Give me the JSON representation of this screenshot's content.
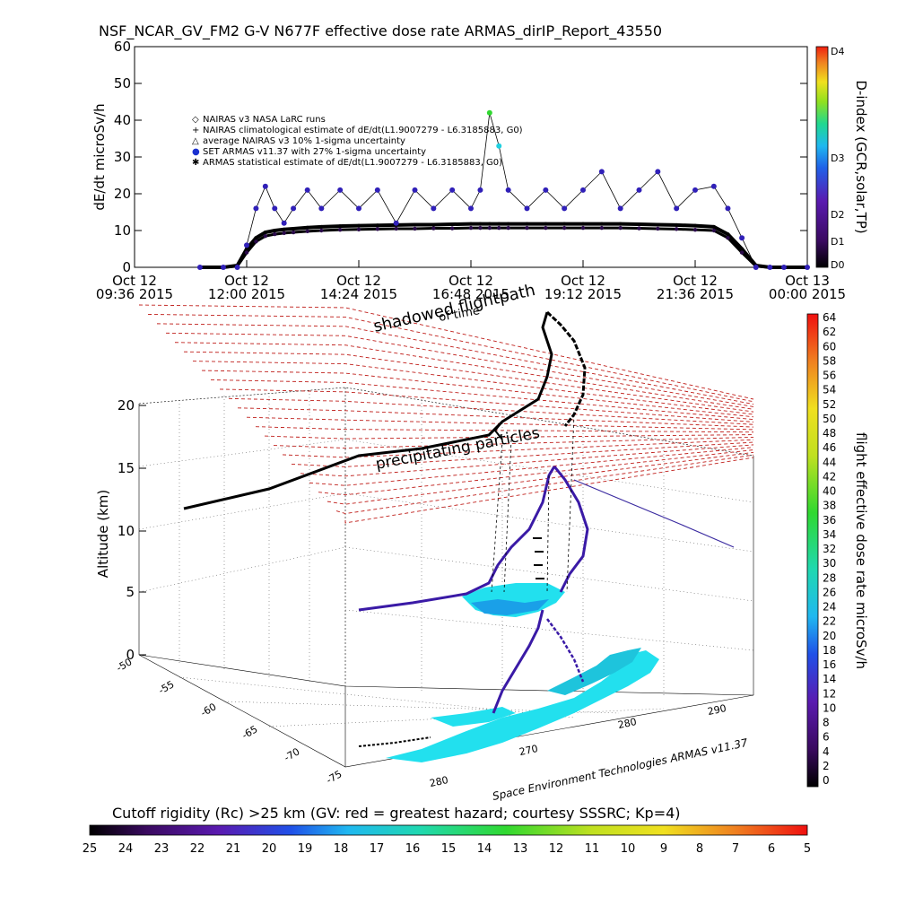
{
  "title": "NSF_NCAR_GV_FM2 G-V     N677F  effective dose rate ARMAS_dirIP_Report_43550",
  "chart_data": [
    {
      "type": "scatter",
      "title": "NSF_NCAR_GV_FM2 G-V     N677F  effective dose rate ARMAS_dirIP_Report_43550",
      "ylabel": "dE/dt microSv/h",
      "ylim": [
        0,
        60
      ],
      "y_ticks": [
        "0",
        "10",
        "20",
        "30",
        "40",
        "50",
        "60"
      ],
      "x_ticks": [
        {
          "line1": "Oct 12",
          "line2": "09:36 2015"
        },
        {
          "line1": "Oct 12",
          "line2": "12:00 2015"
        },
        {
          "line1": "Oct 12",
          "line2": "14:24 2015"
        },
        {
          "line1": "Oct 12",
          "line2": "16:48 2015"
        },
        {
          "line1": "Oct 12",
          "line2": "19:12 2015"
        },
        {
          "line1": "Oct 12",
          "line2": "21:36 2015"
        },
        {
          "line1": "Oct 13",
          "line2": "00:00 2015"
        }
      ],
      "right_axis": {
        "label": "D-index (GCR,solar,TP)",
        "ticks": [
          "D4",
          "D3",
          "D2",
          "D1",
          "D0"
        ]
      },
      "legend": [
        {
          "symbol": "◇",
          "label": "NAIRAS v3 NASA LaRC runs"
        },
        {
          "symbol": "+",
          "label": "NAIRAS climatological estimate of dE/dt(L1.9007279 - L6.3185883, G0)"
        },
        {
          "symbol": "△",
          "label": "average NAIRAS v3 10% 1-sigma uncertainty"
        },
        {
          "symbol": "●",
          "label": "SET ARMAS v11.37 with 27% 1-sigma uncertainty"
        },
        {
          "symbol": "✱",
          "label": "ARMAS statistical estimate of dE/dt(L1.9007279 - L6.3185883, G0)"
        }
      ],
      "x_hours": [
        11.0,
        11.5,
        11.8,
        12.0,
        12.2,
        12.4,
        12.6,
        12.8,
        13.0,
        13.3,
        13.6,
        14.0,
        14.4,
        14.8,
        15.2,
        15.6,
        16.0,
        16.4,
        16.8,
        17.0,
        17.2,
        17.4,
        17.6,
        18.0,
        18.4,
        18.8,
        19.2,
        19.6,
        20.0,
        20.4,
        20.8,
        21.2,
        21.6,
        22.0,
        22.3,
        22.6,
        22.9,
        23.2,
        23.5,
        24.0
      ],
      "series": [
        {
          "name": "NAIRAS climatological estimate of dE/dt(L1.9007279 - L6.3185883, G0)",
          "values": [
            0,
            0,
            0.5,
            5,
            8,
            9.5,
            10,
            10.3,
            10.5,
            10.8,
            11,
            11.2,
            11.3,
            11.4,
            11.5,
            11.6,
            11.6,
            11.7,
            11.8,
            11.8,
            11.8,
            11.8,
            11.8,
            11.8,
            11.8,
            11.8,
            11.8,
            11.8,
            11.8,
            11.7,
            11.6,
            11.5,
            11.3,
            11,
            9,
            5,
            0.5,
            0,
            0,
            0
          ]
        },
        {
          "name": "ARMAS statistical estimate of dE/dt(L1.9007279 - L6.3185883, G0)",
          "values": [
            0,
            0,
            0.3,
            4,
            7,
            8.5,
            9,
            9.3,
            9.5,
            9.8,
            10,
            10.2,
            10.3,
            10.4,
            10.5,
            10.5,
            10.6,
            10.6,
            10.7,
            10.7,
            10.7,
            10.7,
            10.7,
            10.7,
            10.7,
            10.7,
            10.7,
            10.7,
            10.7,
            10.6,
            10.5,
            10.4,
            10.2,
            10,
            8,
            4,
            0.3,
            0,
            0,
            0
          ]
        },
        {
          "name": "SET ARMAS v11.37 with 27% 1-sigma uncertainty",
          "values": [
            0,
            0,
            0,
            6,
            16,
            22,
            16,
            12,
            16,
            21,
            16,
            21,
            16,
            21,
            12,
            21,
            16,
            21,
            16,
            21,
            42,
            33,
            21,
            16,
            21,
            16,
            21,
            26,
            16,
            21,
            26,
            16,
            21,
            22,
            16,
            8,
            0,
            0,
            0,
            0
          ]
        }
      ]
    },
    {
      "type": "scatter",
      "title": "",
      "zlabel": "Altitude (km)",
      "z_ticks": [
        "0",
        "5",
        "10",
        "15",
        "20"
      ],
      "lat_ticks": [
        "-50",
        "-55",
        "-60",
        "-65",
        "-70",
        "-75"
      ],
      "lon_ticks": [
        "280",
        "270",
        "280",
        "290"
      ],
      "labels": [
        "shadowed flightpath",
        "of time",
        "precipitating particles"
      ],
      "credit": "Space Environment Technologies ARMAS v11.37",
      "colorbar": {
        "label": "flight effective dose rate microSv/h",
        "ticks": [
          "64",
          "62",
          "60",
          "58",
          "56",
          "54",
          "52",
          "50",
          "48",
          "46",
          "44",
          "42",
          "40",
          "38",
          "36",
          "34",
          "32",
          "30",
          "28",
          "26",
          "24",
          "22",
          "20",
          "18",
          "16",
          "14",
          "12",
          "10",
          "8",
          "6",
          "4",
          "2",
          "0"
        ]
      }
    }
  ],
  "bottom_colorbar": {
    "label": "Cutoff rigidity (Rc) >25 km (GV: red = greatest hazard; courtesy SSSRC; Kp=4)",
    "ticks": [
      "25",
      "24",
      "23",
      "22",
      "21",
      "20",
      "19",
      "18",
      "17",
      "16",
      "15",
      "14",
      "13",
      "12",
      "11",
      "10",
      "9",
      "8",
      "7",
      "6",
      "5"
    ]
  },
  "colors": {
    "hazard_grid": "#c0201c",
    "flight_track": "#3a1aa6",
    "map_fill": "#22e0ee",
    "shadow_track": "#000000"
  }
}
